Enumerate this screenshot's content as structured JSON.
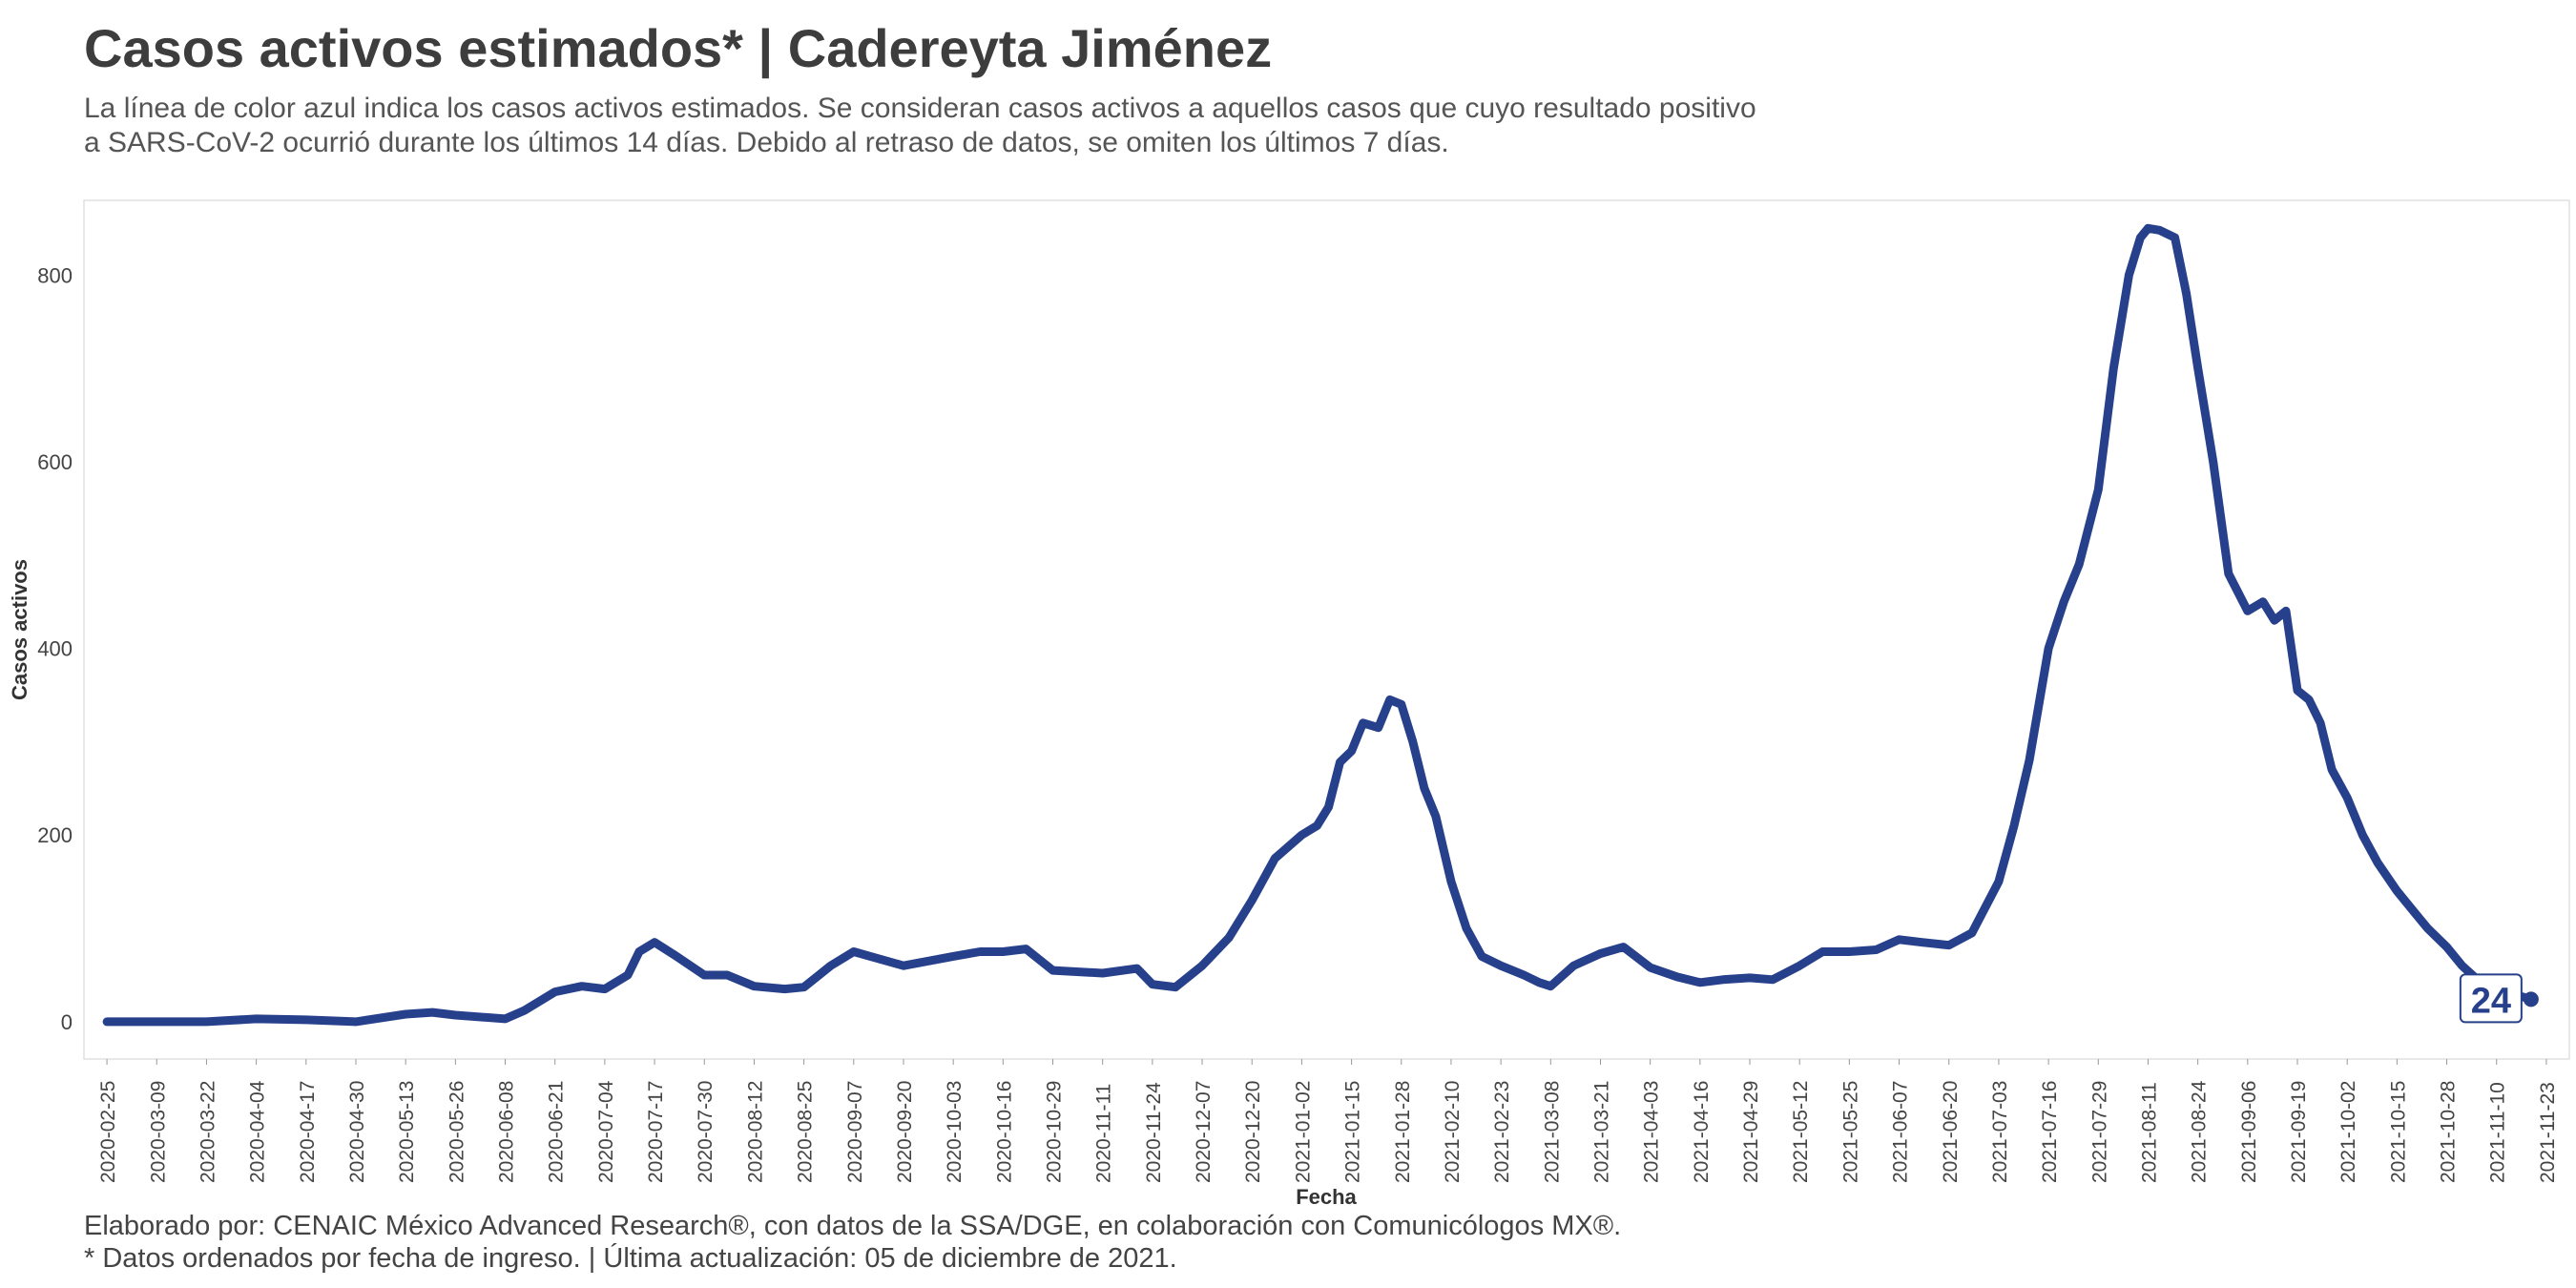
{
  "title": "Casos activos estimados* | Cadereyta Jiménez",
  "subtitle_lines": [
    "La línea de color azul indica los casos activos estimados. Se consideran casos activos a aquellos casos que cuyo resultado positivo",
    "a SARS-CoV-2 ocurrió durante los últimos 14 días. Debido al retraso de datos, se omiten los últimos 7 días."
  ],
  "caption_lines": [
    "Elaborado por: CENAIC México Advanced Research®, con datos de la SSA/DGE, en colaboración con Comunicólogos MX®.",
    "* Datos ordenados por fecha de ingreso. | Última actualización: 05 de diciembre de 2021."
  ],
  "colors": {
    "line": "#27408b",
    "panel_border": "#e0e0e0",
    "label_bg": "#ffffff"
  },
  "chart_data": {
    "type": "line",
    "xlabel": "Fecha",
    "ylabel": "Casos activos",
    "x_range": [
      "2020-02-19",
      "2021-11-29"
    ],
    "ylim": [
      -40,
      880
    ],
    "yticks": [
      0,
      200,
      400,
      600,
      800
    ],
    "xticks": [
      "2020-02-25",
      "2020-03-09",
      "2020-03-22",
      "2020-04-04",
      "2020-04-17",
      "2020-04-30",
      "2020-05-13",
      "2020-05-26",
      "2020-06-08",
      "2020-06-21",
      "2020-07-04",
      "2020-07-17",
      "2020-07-30",
      "2020-08-12",
      "2020-08-25",
      "2020-09-07",
      "2020-09-20",
      "2020-10-03",
      "2020-10-16",
      "2020-10-29",
      "2020-11-11",
      "2020-11-24",
      "2020-12-07",
      "2020-12-20",
      "2021-01-02",
      "2021-01-15",
      "2021-01-28",
      "2021-02-10",
      "2021-02-23",
      "2021-03-08",
      "2021-03-21",
      "2021-04-03",
      "2021-04-16",
      "2021-04-29",
      "2021-05-12",
      "2021-05-25",
      "2021-06-07",
      "2021-06-20",
      "2021-07-03",
      "2021-07-16",
      "2021-07-29",
      "2021-08-11",
      "2021-08-24",
      "2021-09-06",
      "2021-09-19",
      "2021-10-02",
      "2021-10-15",
      "2021-10-28",
      "2021-11-10",
      "2021-11-23"
    ],
    "grid": false,
    "last_value_label": "24",
    "series": [
      {
        "x": [
          "2020-02-25",
          "2020-03-22",
          "2020-04-04",
          "2020-04-17",
          "2020-04-30",
          "2020-05-13",
          "2020-05-20",
          "2020-05-26",
          "2020-06-08",
          "2020-06-13",
          "2020-06-21",
          "2020-06-28",
          "2020-07-04",
          "2020-07-10",
          "2020-07-13",
          "2020-07-17",
          "2020-07-22",
          "2020-07-30",
          "2020-08-05",
          "2020-08-12",
          "2020-08-20",
          "2020-08-25",
          "2020-09-01",
          "2020-09-07",
          "2020-09-13",
          "2020-09-20",
          "2020-10-03",
          "2020-10-10",
          "2020-10-16",
          "2020-10-22",
          "2020-10-29",
          "2020-11-11",
          "2020-11-20",
          "2020-11-24",
          "2020-11-30",
          "2020-12-07",
          "2020-12-14",
          "2020-12-20",
          "2020-12-26",
          "2021-01-02",
          "2021-01-06",
          "2021-01-09",
          "2021-01-12",
          "2021-01-15",
          "2021-01-18",
          "2021-01-22",
          "2021-01-25",
          "2021-01-28",
          "2021-01-31",
          "2021-02-03",
          "2021-02-06",
          "2021-02-10",
          "2021-02-14",
          "2021-02-18",
          "2021-02-23",
          "2021-03-01",
          "2021-03-05",
          "2021-03-08",
          "2021-03-14",
          "2021-03-21",
          "2021-03-27",
          "2021-04-03",
          "2021-04-10",
          "2021-04-16",
          "2021-04-22",
          "2021-04-29",
          "2021-05-05",
          "2021-05-12",
          "2021-05-18",
          "2021-05-25",
          "2021-06-01",
          "2021-06-07",
          "2021-06-13",
          "2021-06-20",
          "2021-06-26",
          "2021-07-03",
          "2021-07-07",
          "2021-07-11",
          "2021-07-16",
          "2021-07-20",
          "2021-07-24",
          "2021-07-29",
          "2021-08-02",
          "2021-08-06",
          "2021-08-09",
          "2021-08-11",
          "2021-08-14",
          "2021-08-18",
          "2021-08-21",
          "2021-08-24",
          "2021-08-28",
          "2021-09-01",
          "2021-09-06",
          "2021-09-10",
          "2021-09-13",
          "2021-09-16",
          "2021-09-19",
          "2021-09-22",
          "2021-09-25",
          "2021-09-28",
          "2021-10-02",
          "2021-10-06",
          "2021-10-10",
          "2021-10-15",
          "2021-10-19",
          "2021-10-23",
          "2021-10-28",
          "2021-11-01",
          "2021-11-05",
          "2021-11-10",
          "2021-11-14",
          "2021-11-19"
        ],
        "y": [
          0,
          0,
          3,
          2,
          0,
          8,
          10,
          7,
          3,
          12,
          32,
          38,
          35,
          50,
          75,
          85,
          72,
          50,
          50,
          38,
          35,
          37,
          60,
          75,
          68,
          60,
          70,
          75,
          75,
          78,
          55,
          52,
          57,
          40,
          37,
          60,
          90,
          130,
          175,
          200,
          210,
          230,
          278,
          290,
          320,
          315,
          345,
          340,
          300,
          250,
          220,
          150,
          100,
          70,
          60,
          50,
          42,
          38,
          60,
          73,
          80,
          58,
          48,
          42,
          45,
          47,
          45,
          60,
          75,
          75,
          77,
          88,
          85,
          82,
          95,
          150,
          210,
          280,
          400,
          450,
          490,
          570,
          700,
          800,
          840,
          850,
          848,
          840,
          780,
          700,
          600,
          480,
          440,
          450,
          430,
          440,
          355,
          345,
          320,
          270,
          240,
          200,
          170,
          140,
          120,
          100,
          80,
          60,
          45,
          35,
          30,
          24
        ]
      }
    ]
  }
}
